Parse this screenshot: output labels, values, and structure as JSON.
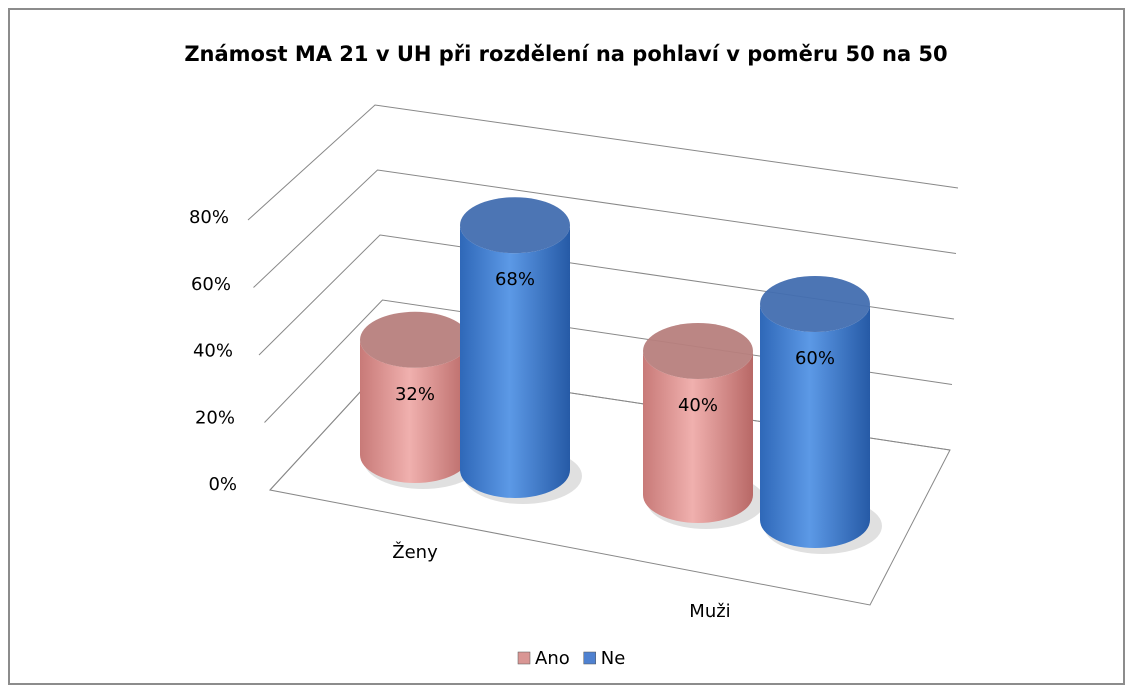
{
  "chart_data": {
    "type": "bar3d",
    "title": "Známost MA 21 v UH při rozdělení na pohlaví v poměru  50 na 50",
    "categories": [
      "Ženy",
      "Muži"
    ],
    "series": [
      {
        "name": "Ano",
        "color": "#d99694",
        "values": [
          32,
          40
        ],
        "value_labels": [
          "32%",
          "40%"
        ]
      },
      {
        "name": "Ne",
        "color": "#4f81d0",
        "values": [
          68,
          60
        ],
        "value_labels": [
          "68%",
          "60%"
        ]
      }
    ],
    "ylim": [
      0,
      80
    ],
    "yticks": [
      {
        "value": 0,
        "label": "0%"
      },
      {
        "value": 20,
        "label": "20%"
      },
      {
        "value": 40,
        "label": "40%"
      },
      {
        "value": 60,
        "label": "60%"
      },
      {
        "value": 80,
        "label": "80%"
      }
    ],
    "grid": true,
    "legend": "bottom"
  }
}
